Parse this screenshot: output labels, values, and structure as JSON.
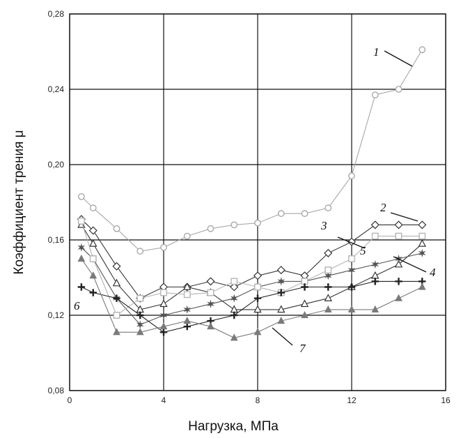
{
  "chart_data": {
    "type": "line",
    "title": "",
    "xlabel": "Нагрузка, МПа",
    "ylabel": "Коэффициент трения μ",
    "xlim": [
      0,
      16
    ],
    "ylim": [
      0.08,
      0.28
    ],
    "xticks": [
      0,
      4,
      8,
      12,
      16
    ],
    "xtick_labels": [
      "0",
      "4",
      "8",
      "12",
      "16"
    ],
    "yticks": [
      0.08,
      0.12,
      0.16,
      0.2,
      0.24,
      0.28
    ],
    "ytick_labels": [
      "0,08",
      "0,12",
      "0,16",
      "0,20",
      "0,24",
      "0,28"
    ],
    "grid": true,
    "series": [
      {
        "name": "1",
        "marker": "circle",
        "color": "#a8a8a8",
        "x": [
          0.5,
          1,
          2,
          3,
          4,
          5,
          6,
          7,
          8,
          9,
          10,
          11,
          12,
          13,
          14,
          15
        ],
        "y": [
          0.183,
          0.177,
          0.166,
          0.154,
          0.156,
          0.162,
          0.166,
          0.168,
          0.169,
          0.174,
          0.174,
          0.177,
          0.194,
          0.237,
          0.24,
          0.261
        ]
      },
      {
        "name": "2",
        "marker": "diamond",
        "color": "#333333",
        "x": [
          0.5,
          1,
          2,
          3,
          4,
          5,
          6,
          7,
          8,
          9,
          10,
          11,
          12,
          13,
          14,
          15
        ],
        "y": [
          0.171,
          0.165,
          0.146,
          0.129,
          0.135,
          0.135,
          0.138,
          0.135,
          0.141,
          0.144,
          0.141,
          0.153,
          0.159,
          0.168,
          0.168,
          0.168
        ]
      },
      {
        "name": "3",
        "marker": "triangle-open",
        "color": "#333333",
        "x": [
          0.5,
          1,
          2,
          3,
          4,
          5,
          6,
          7,
          8,
          9,
          10,
          11,
          12,
          13,
          14,
          15
        ],
        "y": [
          0.168,
          0.158,
          0.137,
          0.123,
          0.126,
          0.135,
          0.132,
          0.123,
          0.123,
          0.123,
          0.126,
          0.129,
          0.135,
          0.141,
          0.147,
          0.158
        ]
      },
      {
        "name": "4",
        "marker": "star",
        "color": "#555555",
        "x": [
          0.5,
          1,
          2,
          3,
          4,
          5,
          6,
          7,
          8,
          9,
          10,
          11,
          12,
          13,
          14,
          15
        ],
        "y": [
          0.156,
          0.15,
          0.129,
          0.115,
          0.12,
          0.123,
          0.126,
          0.129,
          0.135,
          0.138,
          0.138,
          0.141,
          0.144,
          0.147,
          0.15,
          0.153
        ]
      },
      {
        "name": "5",
        "marker": "square",
        "color": "#b4b4b4",
        "x": [
          0.5,
          1,
          2,
          3,
          4,
          5,
          6,
          7,
          8,
          9,
          10,
          11,
          12,
          13,
          14,
          15
        ],
        "y": [
          0.17,
          0.15,
          0.12,
          0.129,
          0.132,
          0.131,
          0.132,
          0.138,
          0.135,
          0.132,
          0.138,
          0.144,
          0.15,
          0.162,
          0.162,
          0.162
        ]
      },
      {
        "name": "6",
        "marker": "plus",
        "color": "#222222",
        "x": [
          0.5,
          1,
          2,
          3,
          4,
          5,
          6,
          7,
          8,
          9,
          10,
          11,
          12,
          13,
          14,
          15
        ],
        "y": [
          0.135,
          0.132,
          0.129,
          0.12,
          0.111,
          0.114,
          0.117,
          0.12,
          0.129,
          0.132,
          0.135,
          0.135,
          0.135,
          0.138,
          0.138,
          0.138
        ]
      },
      {
        "name": "7",
        "marker": "triangle-filled",
        "color": "#7a7a7a",
        "x": [
          0.5,
          1,
          2,
          3,
          4,
          5,
          6,
          7,
          8,
          9,
          10,
          11,
          12,
          13,
          14,
          15
        ],
        "y": [
          0.15,
          0.141,
          0.111,
          0.111,
          0.114,
          0.117,
          0.114,
          0.108,
          0.111,
          0.117,
          0.12,
          0.123,
          0.123,
          0.123,
          0.129,
          0.135
        ]
      }
    ],
    "annotations": [
      {
        "text": "1",
        "series": "1"
      },
      {
        "text": "2",
        "series": "2"
      },
      {
        "text": "3",
        "series": "3"
      },
      {
        "text": "4",
        "series": "4"
      },
      {
        "text": "5",
        "series": "5"
      },
      {
        "text": "6",
        "series": "6"
      },
      {
        "text": "7",
        "series": "7"
      }
    ]
  }
}
